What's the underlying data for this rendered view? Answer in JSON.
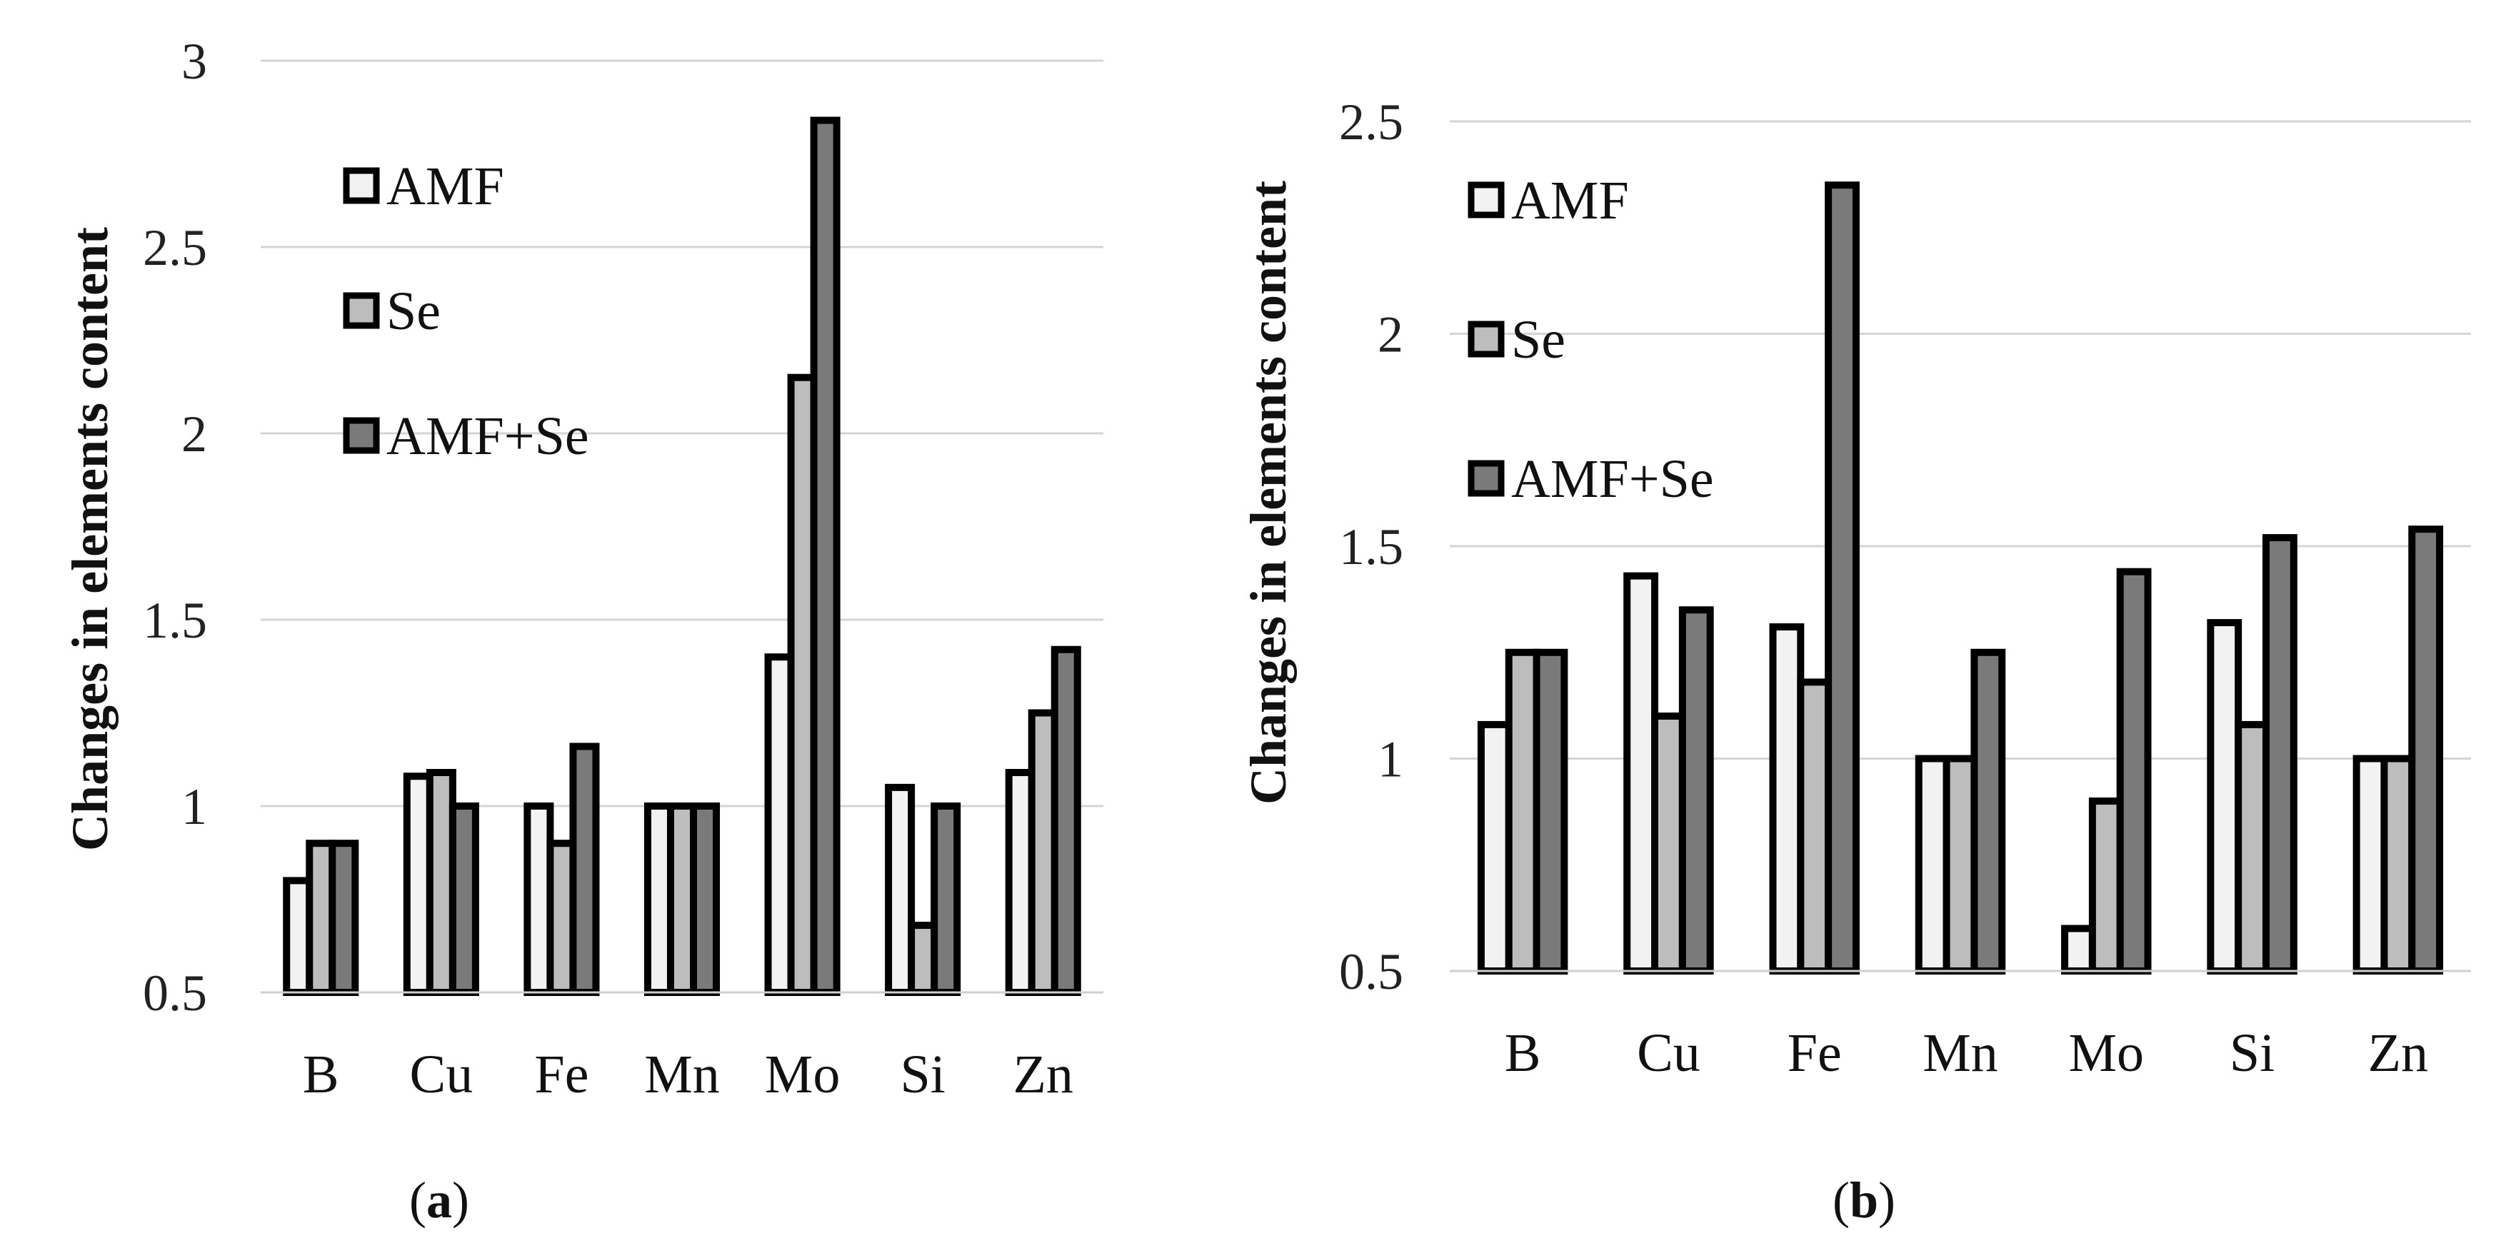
{
  "chart_data": [
    {
      "type": "bar",
      "panel_label": "a",
      "ylabel": "Changes in elements content",
      "xlabel": "",
      "ylim": [
        0.5,
        3
      ],
      "yticks": [
        "0.5",
        "1",
        "1.5",
        "2",
        "2.5",
        "3"
      ],
      "grid": true,
      "legend": "top-left",
      "categories": [
        "B",
        "Cu",
        "Fe",
        "Mn",
        "Mo",
        "Si",
        "Zn"
      ],
      "series": [
        {
          "name": "AMF",
          "color": "#f2f2f2",
          "values": [
            0.8,
            1.08,
            1.0,
            1.0,
            1.4,
            1.05,
            1.09
          ]
        },
        {
          "name": "Se",
          "color": "#bdbdbd",
          "values": [
            0.9,
            1.09,
            0.9,
            1.0,
            2.15,
            0.68,
            1.25
          ]
        },
        {
          "name": "AMF+Se",
          "color": "#7a7a7a",
          "values": [
            0.9,
            1.0,
            1.16,
            1.0,
            2.84,
            1.0,
            1.42
          ]
        }
      ]
    },
    {
      "type": "bar",
      "panel_label": "b",
      "ylabel": "Changes in elements content",
      "xlabel": "",
      "ylim": [
        0.5,
        2.5
      ],
      "yticks": [
        "0.5",
        "1",
        "1.5",
        "2",
        "2.5"
      ],
      "grid": true,
      "legend": "top-left",
      "categories": [
        "B",
        "Cu",
        "Fe",
        "Mn",
        "Mo",
        "Si",
        "Zn"
      ],
      "series": [
        {
          "name": "AMF",
          "color": "#f2f2f2",
          "values": [
            1.08,
            1.43,
            1.31,
            1.0,
            0.6,
            1.32,
            1.0
          ]
        },
        {
          "name": "Se",
          "color": "#bdbdbd",
          "values": [
            1.25,
            1.1,
            1.18,
            1.0,
            0.9,
            1.08,
            1.0
          ]
        },
        {
          "name": "AMF+Se",
          "color": "#7a7a7a",
          "values": [
            1.25,
            1.35,
            2.35,
            1.25,
            1.44,
            1.52,
            1.54
          ]
        }
      ]
    }
  ]
}
